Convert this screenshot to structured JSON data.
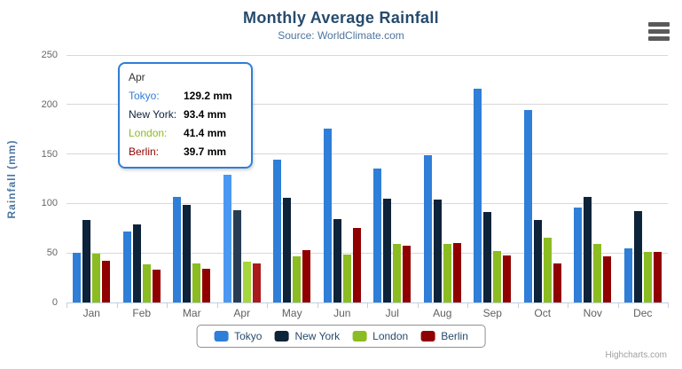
{
  "chart": {
    "title": "Monthly Average Rainfall",
    "subtitle": "Source: WorldClimate.com",
    "credits": "Highcharts.com",
    "icons": {
      "export_menu": "hamburger-menu-icon"
    },
    "y_axis": {
      "title": "Rainfall (mm)",
      "ticks": [
        0,
        50,
        100,
        150,
        200,
        250
      ]
    },
    "colors": {
      "title": "#274b6d",
      "subtitle": "#4d759e",
      "axis_labels": "#666666",
      "gridline": "#d8d8d8",
      "axis_line": "#c0d0e0",
      "legend_text": "#274b6d",
      "credits": "#a0a0a0",
      "menu_icon": "#5a5a5a"
    }
  },
  "chart_data": {
    "type": "bar",
    "title": "Monthly Average Rainfall",
    "subtitle": "Source: WorldClimate.com",
    "xlabel": "",
    "ylabel": "Rainfall (mm)",
    "ylim": [
      0,
      250
    ],
    "y_tick_interval": 50,
    "grid": true,
    "legend_position": "bottom",
    "hovered_category": "Apr",
    "categories": [
      "Jan",
      "Feb",
      "Mar",
      "Apr",
      "May",
      "Jun",
      "Jul",
      "Aug",
      "Sep",
      "Oct",
      "Nov",
      "Dec"
    ],
    "series": [
      {
        "name": "Tokyo",
        "color": "#2f7ed8",
        "hover_color": "#4a98f2",
        "values": [
          49.9,
          71.5,
          106.4,
          129.2,
          144.0,
          176.0,
          135.6,
          148.5,
          216.4,
          194.1,
          95.6,
          54.4
        ]
      },
      {
        "name": "New York",
        "color": "#0d233a",
        "hover_color": "#273d54",
        "values": [
          83.6,
          78.8,
          98.5,
          93.4,
          106.0,
          84.5,
          105.0,
          104.3,
          91.2,
          83.5,
          106.6,
          92.3
        ]
      },
      {
        "name": "London",
        "color": "#8bbc21",
        "hover_color": "#a5d63b",
        "values": [
          48.9,
          38.8,
          39.3,
          41.4,
          47.0,
          48.3,
          59.0,
          59.6,
          52.4,
          65.2,
          59.3,
          51.2
        ]
      },
      {
        "name": "Berlin",
        "color": "#910000",
        "hover_color": "#ab1a1a",
        "values": [
          42.4,
          33.2,
          34.5,
          39.7,
          52.6,
          75.5,
          57.4,
          60.4,
          47.6,
          39.1,
          46.8,
          51.1
        ]
      }
    ]
  },
  "tooltip": {
    "border_color": "#2f7ed8",
    "header": "Apr",
    "rows": [
      {
        "label": "Tokyo:",
        "value": "129.2 mm",
        "color": "#2f7ed8"
      },
      {
        "label": "New York:",
        "value": "93.4 mm",
        "color": "#0d233a"
      },
      {
        "label": "London:",
        "value": "41.4 mm",
        "color": "#8bbc21"
      },
      {
        "label": "Berlin:",
        "value": "39.7 mm",
        "color": "#910000"
      }
    ]
  }
}
